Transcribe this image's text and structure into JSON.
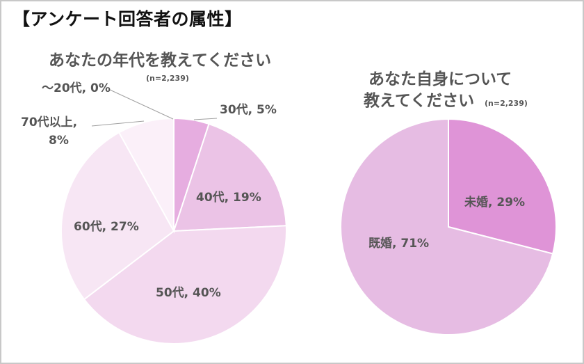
{
  "header": {
    "title": "【アンケート回答者の属性】"
  },
  "chart_data": [
    {
      "type": "pie",
      "title": "あなたの年代を教えてください",
      "note": "(n=2,239)",
      "start_angle_deg": 0,
      "direction": "clockwise",
      "slices": [
        {
          "name": "〜20代",
          "value": 0,
          "label": "〜20代, 0%",
          "color": "#f3dff1"
        },
        {
          "name": "30代",
          "value": 5,
          "label": "30代, 5%",
          "color": "#e6ade0"
        },
        {
          "name": "40代",
          "value": 19,
          "label": "40代, 19%",
          "color": "#ebc3e6"
        },
        {
          "name": "50代",
          "value": 40,
          "label": "50代, 40%",
          "color": "#f3d9ef"
        },
        {
          "name": "60代",
          "value": 27,
          "label": "60代, 27%",
          "color": "#f7e6f4"
        },
        {
          "name": "70代以上",
          "value": 8,
          "label": "70代以上, 8%",
          "label_lines": [
            "70代以上,",
            "8%"
          ],
          "color": "#fbf0f9"
        }
      ]
    },
    {
      "type": "pie",
      "title_lines": [
        "あなた自身について",
        "教えてください"
      ],
      "note": "(n=2,239)",
      "start_angle_deg": 0,
      "direction": "clockwise",
      "slices": [
        {
          "name": "未婚",
          "value": 29,
          "label": "未婚, 29%",
          "color": "#df94d7"
        },
        {
          "name": "既婚",
          "value": 71,
          "label": "既婚, 71%",
          "color": "#e6bce3"
        }
      ]
    }
  ]
}
